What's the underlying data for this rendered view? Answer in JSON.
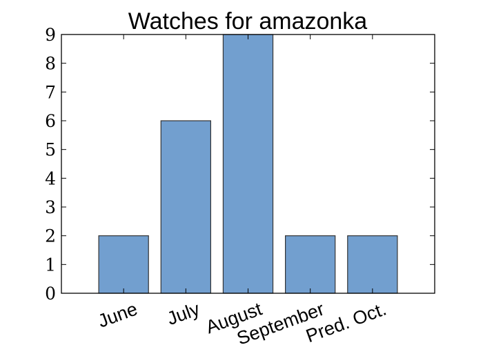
{
  "chart_data": {
    "type": "bar",
    "title": "Watches for amazonka",
    "categories": [
      "June",
      "July",
      "August",
      "September",
      "Pred. Oct."
    ],
    "values": [
      2,
      6,
      9,
      2,
      2
    ],
    "xlabel": "",
    "ylabel": "",
    "ylim": [
      0,
      9
    ],
    "yticks": [
      0,
      1,
      2,
      3,
      4,
      5,
      6,
      7,
      8,
      9
    ],
    "xtick_rotation_deg": -20,
    "grid": false,
    "legend": "none",
    "bar_color": "#729fcf",
    "bar_edge_color": "#333333"
  }
}
